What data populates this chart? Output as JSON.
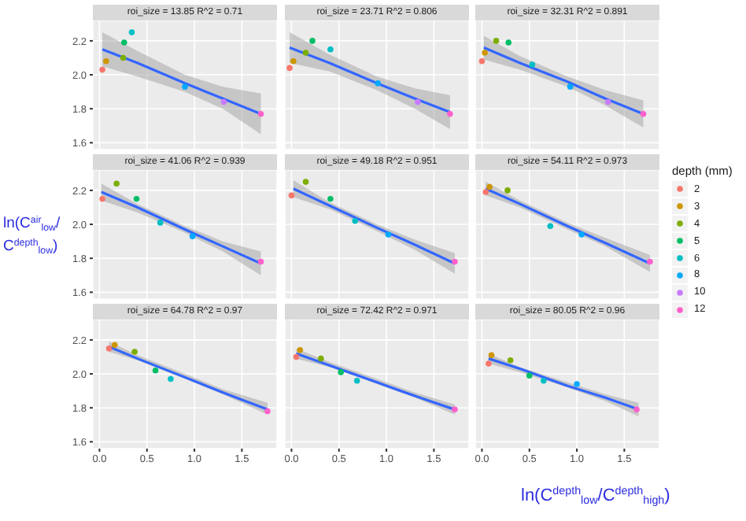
{
  "chart_data": [
    {
      "type": "scatter",
      "title": "roi_size = 13.85 R^2 = 0.71",
      "marker": "circle",
      "grid": true,
      "tick_labels": "y",
      "xlim": [
        -0.07,
        1.87
      ],
      "ylim": [
        1.56,
        2.32
      ],
      "xticks": [
        0,
        0.5,
        1,
        1.5
      ],
      "yticks": [
        {
          "value": 1.6,
          "label": "1.6"
        },
        {
          "value": 1.8,
          "label": "1.8"
        },
        {
          "value": 2,
          "label": "2.0"
        },
        {
          "value": 2.2,
          "label": "2.2"
        }
      ],
      "series": [
        {
          "color": "#f8766d",
          "x": [
            0.03
          ],
          "values": [
            2.03
          ]
        },
        {
          "color": "#cd9600",
          "x": [
            0.07
          ],
          "values": [
            2.08
          ]
        },
        {
          "color": "#7cae00",
          "x": [
            0.25
          ],
          "values": [
            2.1
          ]
        },
        {
          "color": "#00be67",
          "x": [
            0.26
          ],
          "values": [
            2.19
          ]
        },
        {
          "color": "#00bfc4",
          "x": [
            0.34
          ],
          "values": [
            2.25
          ]
        },
        {
          "color": "#00a9ff",
          "x": [
            0.9
          ],
          "values": [
            1.93
          ]
        },
        {
          "color": "#c77cff",
          "x": [
            1.31
          ],
          "values": [
            1.84
          ]
        },
        {
          "color": "#ff61cc",
          "x": [
            1.7
          ],
          "values": [
            1.77
          ]
        },
        {
          "type": "line",
          "marker": "none",
          "color": "#3366ff",
          "x": [
            0.03,
            0.4,
            0.9,
            1.3,
            1.7
          ],
          "values": [
            2.15,
            2.07,
            1.95,
            1.86,
            1.77
          ],
          "lower": [
            2.05,
            1.99,
            1.9,
            1.8,
            1.65
          ],
          "upper": [
            2.25,
            2.14,
            2.0,
            1.93,
            1.89
          ]
        }
      ]
    },
    {
      "type": "scatter",
      "title": "roi_size = 23.71 R^2 = 0.806",
      "marker": "circle",
      "grid": true,
      "tick_labels": false,
      "xlim": [
        -0.07,
        1.87
      ],
      "ylim": [
        1.56,
        2.32
      ],
      "xticks": [
        0,
        0.5,
        1,
        1.5
      ],
      "yticks": [
        1.6,
        1.8,
        2,
        2.2
      ],
      "series": [
        {
          "color": "#f8766d",
          "x": [
            -0.02
          ],
          "values": [
            2.04
          ]
        },
        {
          "color": "#cd9600",
          "x": [
            0.02
          ],
          "values": [
            2.08
          ]
        },
        {
          "color": "#7cae00",
          "x": [
            0.15
          ],
          "values": [
            2.13
          ]
        },
        {
          "color": "#00be67",
          "x": [
            0.22
          ],
          "values": [
            2.2
          ]
        },
        {
          "color": "#00bfc4",
          "x": [
            0.41
          ],
          "values": [
            2.15
          ]
        },
        {
          "color": "#00a9ff",
          "x": [
            0.91
          ],
          "values": [
            1.95
          ]
        },
        {
          "color": "#c77cff",
          "x": [
            1.33
          ],
          "values": [
            1.84
          ]
        },
        {
          "color": "#ff61cc",
          "x": [
            1.67
          ],
          "values": [
            1.77
          ]
        },
        {
          "type": "line",
          "marker": "none",
          "color": "#3366ff",
          "x": [
            -0.02,
            0.4,
            0.9,
            1.3,
            1.67
          ],
          "values": [
            2.16,
            2.07,
            1.95,
            1.86,
            1.78
          ],
          "lower": [
            2.07,
            2.02,
            1.91,
            1.8,
            1.68
          ],
          "upper": [
            2.25,
            2.12,
            1.99,
            1.92,
            1.88
          ]
        }
      ]
    },
    {
      "type": "scatter",
      "title": "roi_size = 32.31 R^2 = 0.891",
      "marker": "circle",
      "grid": true,
      "tick_labels": false,
      "xlim": [
        -0.07,
        1.87
      ],
      "ylim": [
        1.56,
        2.32
      ],
      "xticks": [
        0,
        0.5,
        1,
        1.5
      ],
      "yticks": [
        1.6,
        1.8,
        2,
        2.2
      ],
      "series": [
        {
          "color": "#f8766d",
          "x": [
            0.0
          ],
          "values": [
            2.08
          ]
        },
        {
          "color": "#cd9600",
          "x": [
            0.03
          ],
          "values": [
            2.13
          ]
        },
        {
          "color": "#7cae00",
          "x": [
            0.15
          ],
          "values": [
            2.2
          ]
        },
        {
          "color": "#00be67",
          "x": [
            0.28
          ],
          "values": [
            2.19
          ]
        },
        {
          "color": "#00bfc4",
          "x": [
            0.53
          ],
          "values": [
            2.06
          ]
        },
        {
          "color": "#00a9ff",
          "x": [
            0.93
          ],
          "values": [
            1.93
          ]
        },
        {
          "color": "#c77cff",
          "x": [
            1.33
          ],
          "values": [
            1.84
          ]
        },
        {
          "color": "#ff61cc",
          "x": [
            1.7
          ],
          "values": [
            1.77
          ]
        },
        {
          "type": "line",
          "marker": "none",
          "color": "#3366ff",
          "x": [
            0.02,
            0.4,
            0.9,
            1.3,
            1.7
          ],
          "values": [
            2.16,
            2.07,
            1.96,
            1.86,
            1.77
          ],
          "lower": [
            2.09,
            2.03,
            1.93,
            1.82,
            1.69
          ],
          "upper": [
            2.23,
            2.11,
            1.99,
            1.91,
            1.85
          ]
        }
      ]
    },
    {
      "type": "scatter",
      "title": "roi_size = 41.06 R^2 = 0.939",
      "ylabel": "ln(C$^{air}$$_{low}$/C$^{depth}$$_{low}$)",
      "marker": "circle",
      "grid": true,
      "tick_labels": "y",
      "xlim": [
        -0.07,
        1.87
      ],
      "ylim": [
        1.56,
        2.32
      ],
      "xticks": [
        0,
        0.5,
        1,
        1.5
      ],
      "yticks": [
        {
          "value": 1.6,
          "label": "1.6"
        },
        {
          "value": 1.8,
          "label": "1.8"
        },
        {
          "value": 2,
          "label": "2.0"
        },
        {
          "value": 2.2,
          "label": "2.2"
        }
      ],
      "series": [
        {
          "color": "#f8766d",
          "x": [
            0.03
          ],
          "values": [
            2.15
          ]
        },
        {
          "color": "#7cae00",
          "x": [
            0.18
          ],
          "values": [
            2.24
          ]
        },
        {
          "color": "#00be67",
          "x": [
            0.39
          ],
          "values": [
            2.15
          ]
        },
        {
          "color": "#00bfc4",
          "x": [
            0.64
          ],
          "values": [
            2.01
          ]
        },
        {
          "color": "#00a9ff",
          "x": [
            0.98
          ],
          "values": [
            1.93
          ]
        },
        {
          "color": "#ff61cc",
          "x": [
            1.7
          ],
          "values": [
            1.78
          ]
        },
        {
          "type": "line",
          "marker": "none",
          "color": "#3366ff",
          "x": [
            0.02,
            0.4,
            0.9,
            1.3,
            1.7
          ],
          "values": [
            2.19,
            2.1,
            1.97,
            1.87,
            1.77
          ],
          "lower": [
            2.14,
            2.07,
            1.95,
            1.84,
            1.7
          ],
          "upper": [
            2.24,
            2.12,
            1.99,
            1.9,
            1.84
          ]
        }
      ]
    },
    {
      "type": "scatter",
      "title": "roi_size = 49.18 R^2 = 0.951",
      "marker": "circle",
      "grid": true,
      "tick_labels": false,
      "xlim": [
        -0.07,
        1.87
      ],
      "ylim": [
        1.56,
        2.32
      ],
      "xticks": [
        0,
        0.5,
        1,
        1.5
      ],
      "yticks": [
        1.6,
        1.8,
        2,
        2.2
      ],
      "series": [
        {
          "color": "#f8766d",
          "x": [
            0.0
          ],
          "values": [
            2.17
          ]
        },
        {
          "color": "#7cae00",
          "x": [
            0.15
          ],
          "values": [
            2.25
          ]
        },
        {
          "color": "#00be67",
          "x": [
            0.41
          ],
          "values": [
            2.15
          ]
        },
        {
          "color": "#00bfc4",
          "x": [
            0.67
          ],
          "values": [
            2.02
          ]
        },
        {
          "color": "#00a9ff",
          "x": [
            1.02
          ],
          "values": [
            1.94
          ]
        },
        {
          "color": "#ff61cc",
          "x": [
            1.72
          ],
          "values": [
            1.78
          ]
        },
        {
          "type": "line",
          "marker": "none",
          "color": "#3366ff",
          "x": [
            0.02,
            0.4,
            0.9,
            1.3,
            1.72
          ],
          "values": [
            2.21,
            2.11,
            1.98,
            1.88,
            1.77
          ],
          "lower": [
            2.16,
            2.09,
            1.96,
            1.85,
            1.71
          ],
          "upper": [
            2.26,
            2.13,
            2.0,
            1.91,
            1.83
          ]
        }
      ]
    },
    {
      "type": "scatter",
      "title": "roi_size = 54.11 R^2 = 0.973",
      "legend": "right",
      "legend_title": "depth (mm)",
      "marker": "circle",
      "grid": true,
      "tick_labels": false,
      "xlim": [
        -0.07,
        1.87
      ],
      "ylim": [
        1.56,
        2.32
      ],
      "xticks": [
        0,
        0.5,
        1,
        1.5
      ],
      "yticks": [
        1.6,
        1.8,
        2,
        2.2
      ],
      "series": [
        {
          "name": "2",
          "color": "#f8766d",
          "x": [
            0.04
          ],
          "values": [
            2.19
          ]
        },
        {
          "name": "3",
          "color": "#cd9600",
          "x": [
            0.08
          ],
          "values": [
            2.22
          ]
        },
        {
          "name": "4",
          "color": "#7cae00",
          "x": [
            0.27
          ],
          "values": [
            2.2
          ]
        },
        {
          "name": "5",
          "color": "#00be67",
          "x": [
            null
          ],
          "values": [
            null
          ]
        },
        {
          "name": "6",
          "color": "#00bfc4",
          "x": [
            0.72
          ],
          "values": [
            1.99
          ]
        },
        {
          "name": "8",
          "color": "#00a9ff",
          "x": [
            1.05
          ],
          "values": [
            1.94
          ]
        },
        {
          "name": "10",
          "color": "#c77cff",
          "x": [
            null
          ],
          "values": [
            null
          ]
        },
        {
          "name": "12",
          "color": "#ff61cc",
          "x": [
            1.77
          ],
          "values": [
            1.78
          ]
        },
        {
          "type": "line",
          "marker": "none",
          "color": "#3366ff",
          "x": [
            0.04,
            0.4,
            0.9,
            1.3,
            1.77
          ],
          "values": [
            2.21,
            2.12,
            1.99,
            1.89,
            1.77
          ],
          "lower": [
            2.17,
            2.1,
            1.97,
            1.87,
            1.72
          ],
          "upper": [
            2.25,
            2.14,
            2.01,
            1.92,
            1.82
          ]
        }
      ]
    },
    {
      "type": "scatter",
      "title": "roi_size = 64.78 R^2 = 0.97",
      "marker": "circle",
      "grid": true,
      "xlim": [
        -0.07,
        1.87
      ],
      "ylim": [
        1.56,
        2.32
      ],
      "xticks": [
        {
          "value": 0,
          "label": "0.0"
        },
        {
          "value": 0.5,
          "label": "0.5"
        },
        {
          "value": 1,
          "label": "1.0"
        },
        {
          "value": 1.5,
          "label": "1.5"
        }
      ],
      "yticks": [
        {
          "value": 1.6,
          "label": "1.6"
        },
        {
          "value": 1.8,
          "label": "1.8"
        },
        {
          "value": 2,
          "label": "2.0"
        },
        {
          "value": 2.2,
          "label": "2.2"
        }
      ],
      "series": [
        {
          "color": "#f8766d",
          "x": [
            0.1
          ],
          "values": [
            2.15
          ]
        },
        {
          "color": "#cd9600",
          "x": [
            0.16
          ],
          "values": [
            2.17
          ]
        },
        {
          "color": "#7cae00",
          "x": [
            0.37
          ],
          "values": [
            2.13
          ]
        },
        {
          "color": "#00be67",
          "x": [
            0.59
          ],
          "values": [
            2.02
          ]
        },
        {
          "color": "#00bfc4",
          "x": [
            0.75
          ],
          "values": [
            1.97
          ]
        },
        {
          "color": "#ff61cc",
          "x": [
            1.77
          ],
          "values": [
            1.78
          ]
        },
        {
          "type": "line",
          "marker": "none",
          "color": "#3366ff",
          "x": [
            0.1,
            0.4,
            0.9,
            1.3,
            1.77
          ],
          "values": [
            2.16,
            2.09,
            1.98,
            1.89,
            1.79
          ],
          "lower": [
            2.13,
            2.08,
            1.97,
            1.88,
            1.76
          ],
          "upper": [
            2.19,
            2.11,
            2.0,
            1.91,
            1.83
          ]
        }
      ]
    },
    {
      "type": "scatter",
      "title": "roi_size = 72.42 R^2 = 0.971",
      "marker": "circle",
      "grid": true,
      "tick_labels": "x",
      "xlim": [
        -0.07,
        1.87
      ],
      "ylim": [
        1.56,
        2.32
      ],
      "xticks": [
        {
          "value": 0,
          "label": "0.0"
        },
        {
          "value": 0.5,
          "label": "0.5"
        },
        {
          "value": 1,
          "label": "1.0"
        },
        {
          "value": 1.5,
          "label": "1.5"
        }
      ],
      "yticks": [
        1.6,
        1.8,
        2,
        2.2
      ],
      "series": [
        {
          "color": "#f8766d",
          "x": [
            0.05
          ],
          "values": [
            2.1
          ]
        },
        {
          "color": "#cd9600",
          "x": [
            0.09
          ],
          "values": [
            2.14
          ]
        },
        {
          "color": "#7cae00",
          "x": [
            0.31
          ],
          "values": [
            2.09
          ]
        },
        {
          "color": "#00be67",
          "x": [
            0.52
          ],
          "values": [
            2.01
          ]
        },
        {
          "color": "#00bfc4",
          "x": [
            0.69
          ],
          "values": [
            1.96
          ]
        },
        {
          "color": "#ff61cc",
          "x": [
            1.72
          ],
          "values": [
            1.79
          ]
        },
        {
          "type": "line",
          "marker": "none",
          "color": "#3366ff",
          "x": [
            0.05,
            0.4,
            0.9,
            1.3,
            1.72
          ],
          "values": [
            2.12,
            2.05,
            1.95,
            1.87,
            1.79
          ],
          "lower": [
            2.09,
            2.04,
            1.94,
            1.86,
            1.76
          ],
          "upper": [
            2.15,
            2.07,
            1.97,
            1.89,
            1.82
          ]
        }
      ]
    },
    {
      "type": "scatter",
      "title": "roi_size = 80.05 R^2 = 0.96",
      "xlabel": "ln(C$^{depth}$$_{low}$/C$^{depth}$$_{high}$)",
      "marker": "circle",
      "grid": true,
      "tick_labels": "x",
      "xlim": [
        -0.07,
        1.87
      ],
      "ylim": [
        1.56,
        2.32
      ],
      "xticks": [
        {
          "value": 0,
          "label": "0.0"
        },
        {
          "value": 0.5,
          "label": "0.5"
        },
        {
          "value": 1,
          "label": "1.0"
        },
        {
          "value": 1.5,
          "label": "1.5"
        }
      ],
      "yticks": [
        1.6,
        1.8,
        2,
        2.2
      ],
      "series": [
        {
          "color": "#f8766d",
          "x": [
            0.07
          ],
          "values": [
            2.06
          ]
        },
        {
          "color": "#cd9600",
          "x": [
            0.1
          ],
          "values": [
            2.11
          ]
        },
        {
          "color": "#7cae00",
          "x": [
            0.3
          ],
          "values": [
            2.08
          ]
        },
        {
          "color": "#00be67",
          "x": [
            0.5
          ],
          "values": [
            1.99
          ]
        },
        {
          "color": "#00bfc4",
          "x": [
            0.65
          ],
          "values": [
            1.96
          ]
        },
        {
          "color": "#00a9ff",
          "x": [
            1.0
          ],
          "values": [
            1.94
          ]
        },
        {
          "color": "#ff61cc",
          "x": [
            1.63
          ],
          "values": [
            1.79
          ]
        },
        {
          "type": "line",
          "marker": "none",
          "color": "#3366ff",
          "x": [
            0.07,
            0.4,
            0.9,
            1.3,
            1.65
          ],
          "values": [
            2.09,
            2.03,
            1.93,
            1.86,
            1.79
          ],
          "lower": [
            2.06,
            2.01,
            1.92,
            1.84,
            1.75
          ],
          "upper": [
            2.12,
            2.04,
            1.95,
            1.88,
            1.83
          ]
        }
      ]
    }
  ]
}
